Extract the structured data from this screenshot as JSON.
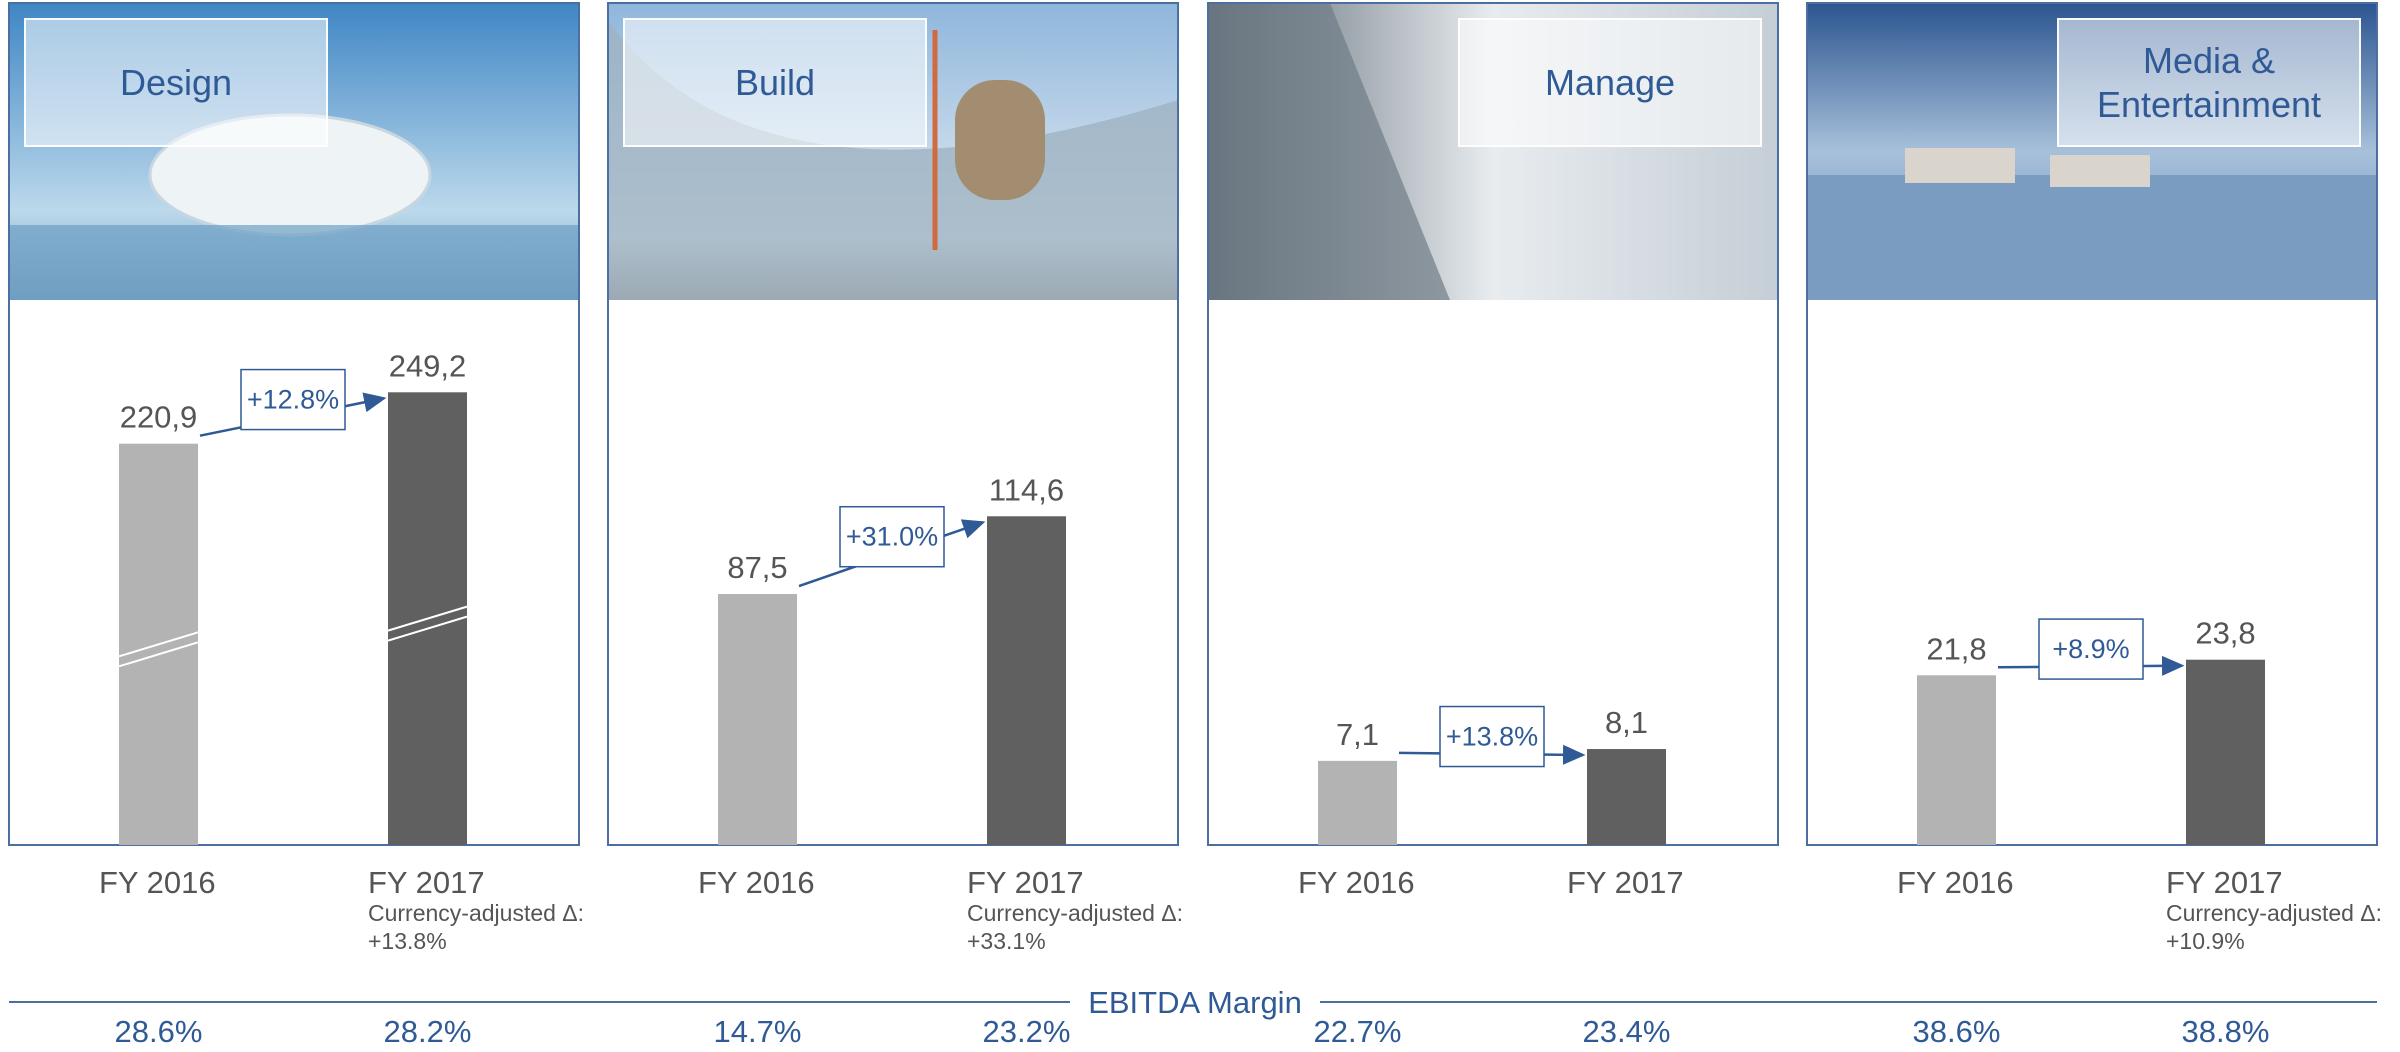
{
  "margin_title": "EBITDA Margin",
  "chart_data": [
    {
      "type": "bar",
      "title": "Design",
      "categories": [
        "FY 2016",
        "FY 2017"
      ],
      "values": [
        220.9,
        249.2
      ],
      "value_labels": [
        "220,9",
        "249,2"
      ],
      "colors": [
        "#b3b3b3",
        "#606060"
      ],
      "ylim": [
        0,
        300
      ],
      "axis_break": true,
      "growth": "+12.8%",
      "note": [
        "Currency-adjusted Δ:",
        "+13.8%"
      ],
      "margins": [
        "28.6%",
        "28.2%"
      ]
    },
    {
      "type": "bar",
      "title": "Build",
      "categories": [
        "FY 2016",
        "FY 2017"
      ],
      "values": [
        87.5,
        114.6
      ],
      "value_labels": [
        "87,5",
        "114,6"
      ],
      "colors": [
        "#b3b3b3",
        "#606060"
      ],
      "ylim": [
        0,
        190
      ],
      "axis_break": false,
      "growth": "+31.0%",
      "note": [
        "Currency-adjusted Δ:",
        "+33.1%"
      ],
      "margins": [
        "14.7%",
        "23.2%"
      ]
    },
    {
      "type": "bar",
      "title": "Manage",
      "categories": [
        "FY 2016",
        "FY 2017"
      ],
      "values": [
        7.1,
        8.1
      ],
      "value_labels": [
        "7,1",
        "8,1"
      ],
      "colors": [
        "#b3b3b3",
        "#606060"
      ],
      "ylim": [
        0,
        46
      ],
      "axis_break": false,
      "growth": "+13.8%",
      "margins": [
        "22.7%",
        "23.4%"
      ]
    },
    {
      "type": "bar",
      "title": "Media & Entertainment",
      "categories": [
        "FY 2016",
        "FY 2017"
      ],
      "values": [
        21.8,
        23.8
      ],
      "value_labels": [
        "21,8",
        "23,8"
      ],
      "colors": [
        "#b3b3b3",
        "#606060"
      ],
      "ylim": [
        0,
        70
      ],
      "axis_break": false,
      "growth": "+8.9%",
      "note": [
        "Currency-adjusted Δ:",
        "+10.9%"
      ],
      "margins": [
        "38.6%",
        "38.8%"
      ]
    }
  ]
}
